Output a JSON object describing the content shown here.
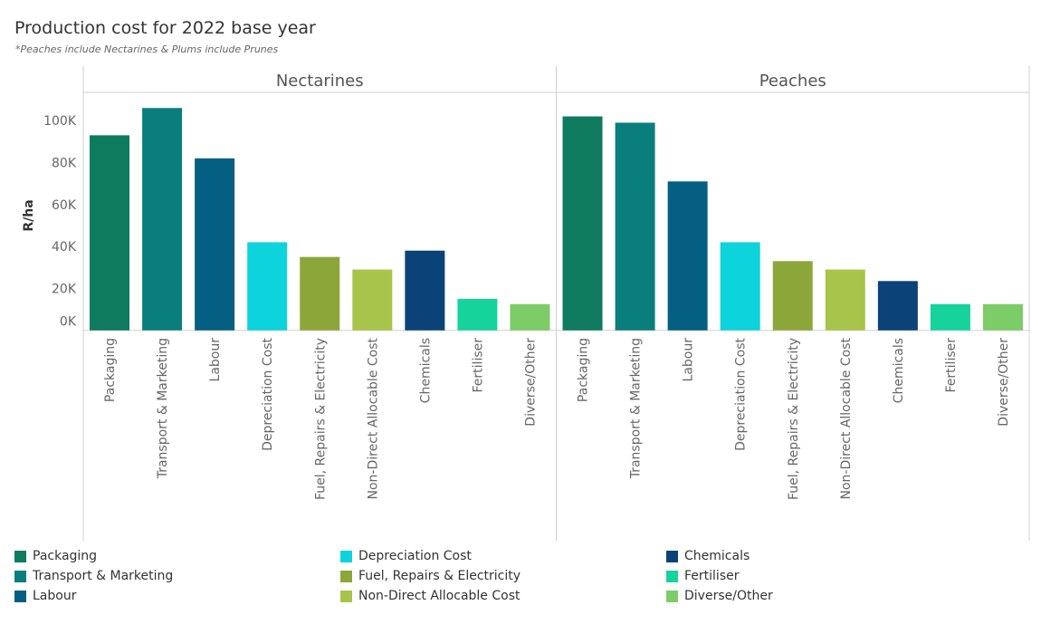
{
  "title": "Production cost for 2022 base year",
  "subtitle": "*Peaches include Nectarines & Plums include Prunes",
  "chart_data": {
    "type": "bar",
    "ylabel": "R/ha",
    "ylim": [
      -4000,
      110000
    ],
    "yticks": [
      0,
      20000,
      40000,
      60000,
      80000,
      100000
    ],
    "ytick_labels": [
      "0K",
      "20K",
      "40K",
      "60K",
      "80K",
      "100K"
    ],
    "categories": [
      "Packaging",
      "Transport & Marketing",
      "Labour",
      "Depreciation Cost",
      "Fuel, Repairs & Electricity",
      "Non-Direct Allocable Cost",
      "Chemicals",
      "Fertiliser",
      "Diverse/Other"
    ],
    "colors": [
      "#0e7a5e",
      "#0a7d7d",
      "#055f82",
      "#0dd3dc",
      "#8da63a",
      "#a8c44a",
      "#0b4379",
      "#15d39b",
      "#7ccc68"
    ],
    "panels": [
      {
        "name": "Nectarines",
        "values": [
          93000,
          106000,
          82000,
          42000,
          35000,
          29000,
          38000,
          15000,
          12500
        ]
      },
      {
        "name": "Peaches",
        "values": [
          102000,
          99000,
          71000,
          42000,
          33000,
          29000,
          23500,
          12500,
          12500
        ]
      }
    ]
  },
  "legend": [
    "Packaging",
    "Transport & Marketing",
    "Labour",
    "Depreciation Cost",
    "Fuel, Repairs & Electricity",
    "Non-Direct Allocable Cost",
    "Chemicals",
    "Fertiliser",
    "Diverse/Other"
  ]
}
